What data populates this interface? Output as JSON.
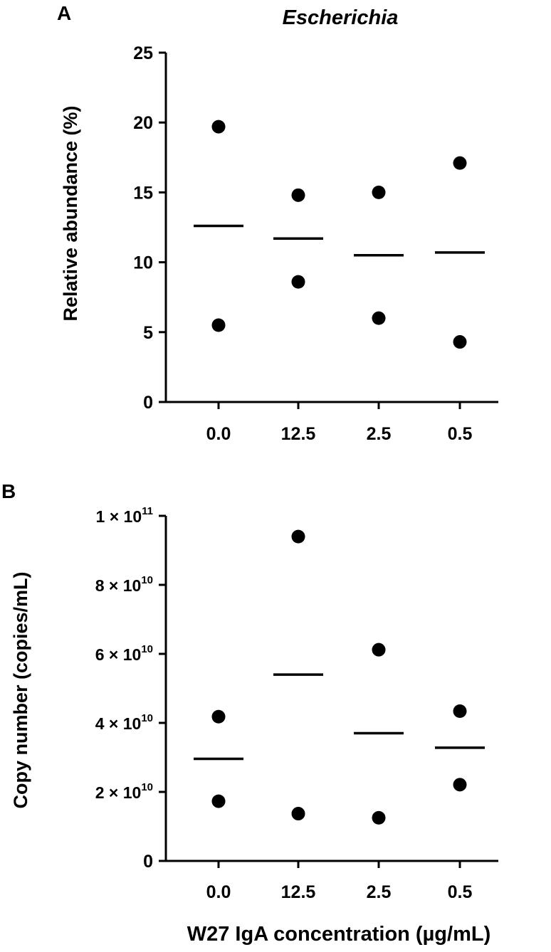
{
  "chart_data": [
    {
      "panel": "A",
      "type": "scatter",
      "title": "Escherichia",
      "ylabel": "Relative abundance (%)",
      "xlabel": "",
      "categories": [
        "0.0",
        "12.5",
        "2.5",
        "0.5"
      ],
      "ylim": [
        0,
        25
      ],
      "yticks": [
        0,
        5,
        10,
        15,
        20,
        25
      ],
      "ytick_labels": [
        "0",
        "5",
        "10",
        "15",
        "20",
        "25"
      ],
      "points": [
        [
          19.7,
          5.5
        ],
        [
          14.8,
          8.6
        ],
        [
          15.0,
          6.0
        ],
        [
          17.1,
          4.3
        ]
      ],
      "means": [
        12.6,
        11.7,
        10.5,
        10.7
      ]
    },
    {
      "panel": "B",
      "type": "scatter",
      "title": "",
      "ylabel": "Copy number (copies/mL)",
      "xlabel": "W27 IgA concentration (µg/mL)",
      "categories": [
        "0.0",
        "12.5",
        "2.5",
        "0.5"
      ],
      "ylim": [
        0,
        100000000000
      ],
      "yticks": [
        0,
        20000000000,
        40000000000,
        60000000000,
        80000000000,
        100000000000
      ],
      "ytick_labels": [
        {
          "text": "0",
          "mant": "",
          "exp": ""
        },
        {
          "text": "",
          "mant": "2 × 10",
          "exp": "10"
        },
        {
          "text": "",
          "mant": "4 × 10",
          "exp": "10"
        },
        {
          "text": "",
          "mant": "6 × 10",
          "exp": "10"
        },
        {
          "text": "",
          "mant": "8 × 10",
          "exp": "10"
        },
        {
          "text": "",
          "mant": "1 × 10",
          "exp": "11"
        }
      ],
      "points": [
        [
          41800000000,
          17300000000
        ],
        [
          94000000000,
          13700000000
        ],
        [
          61200000000,
          12500000000
        ],
        [
          43400000000,
          22100000000
        ]
      ],
      "means": [
        29600000000,
        54000000000,
        37000000000,
        32800000000
      ]
    }
  ]
}
